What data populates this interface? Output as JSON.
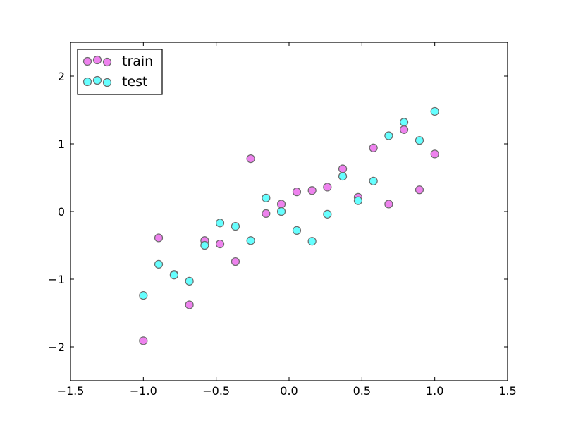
{
  "chart_data": {
    "type": "scatter",
    "title": "",
    "xlabel": "",
    "ylabel": "",
    "xlim": [
      -1.5,
      1.5
    ],
    "ylim": [
      -2.5,
      2.5
    ],
    "xticks": [
      -1.5,
      -1.0,
      -0.5,
      0.0,
      0.5,
      1.0,
      1.5
    ],
    "xtick_labels": [
      "−1.5",
      "−1.0",
      "−0.5",
      "0.0",
      "0.5",
      "1.0",
      "1.5"
    ],
    "yticks": [
      -2,
      -1,
      0,
      1,
      2
    ],
    "ytick_labels": [
      "−2",
      "−1",
      "0",
      "1",
      "2"
    ],
    "grid": false,
    "legend_position": "top-left",
    "series": [
      {
        "name": "train",
        "color": "#ee82ee",
        "edge_color": "#6a6a6a",
        "x": [
          -1.0,
          -0.895,
          -0.789,
          -0.684,
          -0.579,
          -0.474,
          -0.368,
          -0.263,
          -0.158,
          -0.053,
          0.053,
          0.158,
          0.263,
          0.368,
          0.474,
          0.579,
          0.684,
          0.789,
          0.895,
          1.0
        ],
        "y": [
          -1.91,
          -0.39,
          -0.93,
          -1.38,
          -0.43,
          -0.48,
          -0.74,
          0.78,
          -0.03,
          0.11,
          0.29,
          0.31,
          0.36,
          0.63,
          0.21,
          0.94,
          0.11,
          1.21,
          0.32,
          0.85
        ]
      },
      {
        "name": "test",
        "color": "#66ffff",
        "edge_color": "#6a6a6a",
        "x": [
          -1.0,
          -0.895,
          -0.789,
          -0.684,
          -0.579,
          -0.474,
          -0.368,
          -0.263,
          -0.158,
          -0.053,
          0.053,
          0.158,
          0.263,
          0.368,
          0.474,
          0.579,
          0.684,
          0.789,
          0.895,
          1.0
        ],
        "y": [
          -1.24,
          -0.78,
          -0.94,
          -1.03,
          -0.5,
          -0.17,
          -0.22,
          -0.43,
          0.2,
          0.0,
          -0.28,
          -0.44,
          -0.04,
          0.52,
          0.16,
          0.45,
          1.12,
          1.32,
          1.05,
          1.48
        ]
      }
    ]
  }
}
